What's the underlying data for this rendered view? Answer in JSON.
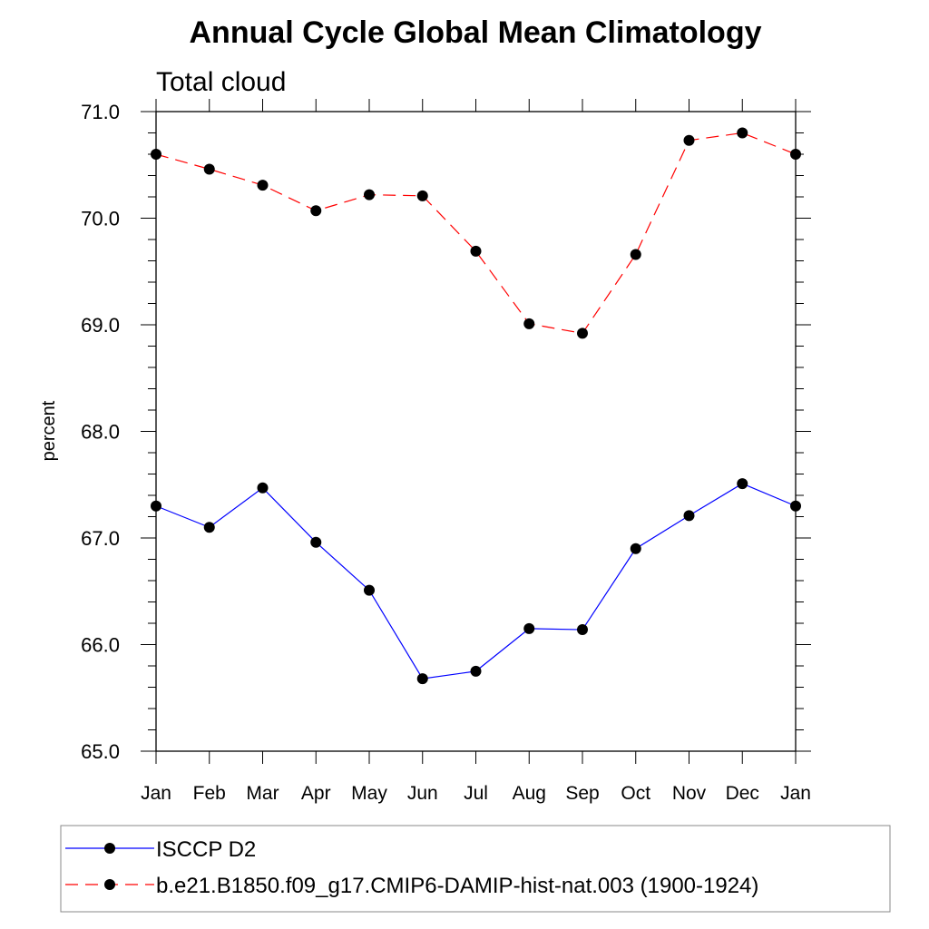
{
  "chart_data": {
    "type": "line",
    "title": "Annual Cycle Global Mean Climatology",
    "subtitle": "Total cloud",
    "ylabel": "percent",
    "xlabel": "",
    "ylim": [
      65.0,
      71.0
    ],
    "y_ticks": [
      "65.0",
      "66.0",
      "67.0",
      "68.0",
      "69.0",
      "70.0",
      "71.0"
    ],
    "categories": [
      "Jan",
      "Feb",
      "Mar",
      "Apr",
      "May",
      "Jun",
      "Jul",
      "Aug",
      "Sep",
      "Oct",
      "Nov",
      "Dec",
      "Jan"
    ],
    "grid": false,
    "legend_position": "bottom",
    "series": [
      {
        "name": "ISCCP D2",
        "color": "#0000ff",
        "line_style": "solid",
        "marker": "filled-circle",
        "values": [
          67.3,
          67.1,
          67.47,
          66.96,
          66.51,
          65.68,
          65.75,
          66.15,
          66.14,
          66.9,
          67.21,
          67.51,
          67.3
        ]
      },
      {
        "name": "b.e21.B1850.f09_g17.CMIP6-DAMIP-hist-nat.003 (1900-1924)",
        "color": "#ff0000",
        "line_style": "dashed",
        "marker": "filled-circle",
        "values": [
          70.6,
          70.46,
          70.31,
          70.07,
          70.22,
          70.21,
          69.69,
          69.01,
          68.92,
          69.66,
          70.73,
          70.8,
          70.6
        ]
      }
    ]
  }
}
